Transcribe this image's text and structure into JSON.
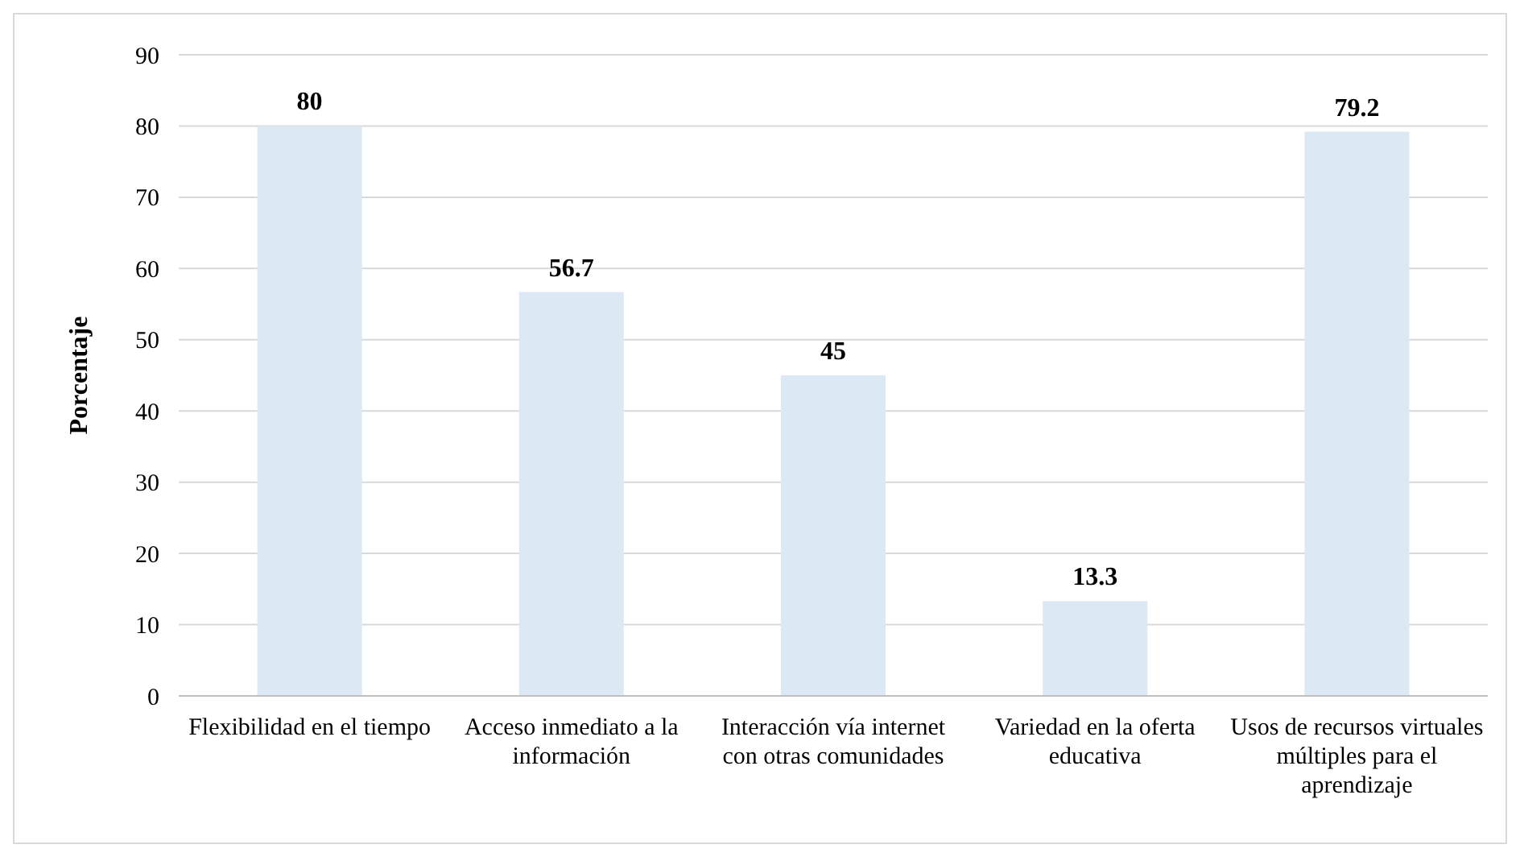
{
  "chart_data": {
    "type": "bar",
    "ylabel": "Porcentaje",
    "categories": [
      "Flexibilidad en el tiempo",
      "Acceso inmediato a la información",
      "Interacción vía internet con otras comunidades",
      "Variedad en la oferta educativa",
      "Usos de recursos virtuales múltiples para el aprendizaje"
    ],
    "values": [
      80,
      56.7,
      45,
      13.3,
      79.2
    ],
    "color": "#dde8f5",
    "ylim": [
      0,
      90
    ],
    "yticks": [
      0,
      10,
      20,
      30,
      40,
      50,
      60,
      70,
      80,
      90
    ],
    "grid": "y",
    "data_labels": true
  }
}
